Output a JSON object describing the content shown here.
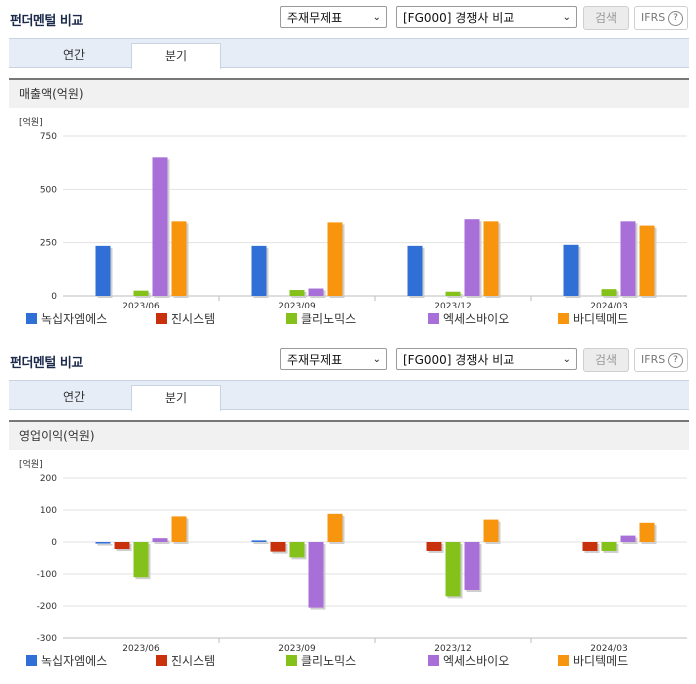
{
  "sections": [
    {
      "title": "펀더멘털 비교",
      "select1": "주재무제표",
      "select2": "[FG000] 경쟁사 비교",
      "search_label": "검색",
      "ifrs_label": "IFRS",
      "help_glyph": "?",
      "tabs": [
        {
          "label": "연간",
          "active": false
        },
        {
          "label": "분기",
          "active": true
        }
      ],
      "subtitle": "매출액(억원)"
    },
    {
      "title": "펀더멘털 비교",
      "select1": "주재무제표",
      "select2": "[FG000] 경쟁사 비교",
      "search_label": "검색",
      "ifrs_label": "IFRS",
      "help_glyph": "?",
      "tabs": [
        {
          "label": "연간",
          "active": false
        },
        {
          "label": "분기",
          "active": true
        }
      ],
      "subtitle": "영업이익(억원)"
    }
  ],
  "colors": [
    "#2f6fd6",
    "#c9310c",
    "#85c11b",
    "#a86fd8",
    "#f7960e"
  ],
  "chart_data": [
    {
      "type": "bar",
      "unit_label": "[억원]",
      "categories": [
        "2023/06",
        "2023/09",
        "2023/12",
        "2024/03"
      ],
      "ylim": [
        0,
        750
      ],
      "yticks": [
        0,
        250,
        500,
        750
      ],
      "grid": true,
      "legend_position": "bottom",
      "series": [
        {
          "name": "녹십자엠에스",
          "values": [
            235,
            235,
            235,
            240
          ]
        },
        {
          "name": "진시스템",
          "values": [
            0,
            0,
            0,
            0
          ]
        },
        {
          "name": "클리노믹스",
          "values": [
            25,
            28,
            20,
            32
          ]
        },
        {
          "name": "엑세스바이오",
          "values": [
            650,
            35,
            360,
            350
          ]
        },
        {
          "name": "바디텍메드",
          "values": [
            350,
            345,
            350,
            330
          ]
        }
      ]
    },
    {
      "type": "bar",
      "unit_label": "[억원]",
      "categories": [
        "2023/06",
        "2023/09",
        "2023/12",
        "2024/03"
      ],
      "ylim": [
        -300,
        200
      ],
      "yticks": [
        200,
        100,
        0,
        -100,
        -200,
        -300
      ],
      "grid": true,
      "legend_position": "bottom",
      "series": [
        {
          "name": "녹십자엠에스",
          "values": [
            -5,
            5,
            0,
            0
          ]
        },
        {
          "name": "진시스템",
          "values": [
            -22,
            -30,
            -28,
            -28
          ]
        },
        {
          "name": "클리노믹스",
          "values": [
            -110,
            -48,
            -170,
            -28
          ]
        },
        {
          "name": "엑세스바이오",
          "values": [
            12,
            -205,
            -150,
            20
          ]
        },
        {
          "name": "바디텍메드",
          "values": [
            80,
            88,
            70,
            60
          ]
        }
      ]
    }
  ]
}
